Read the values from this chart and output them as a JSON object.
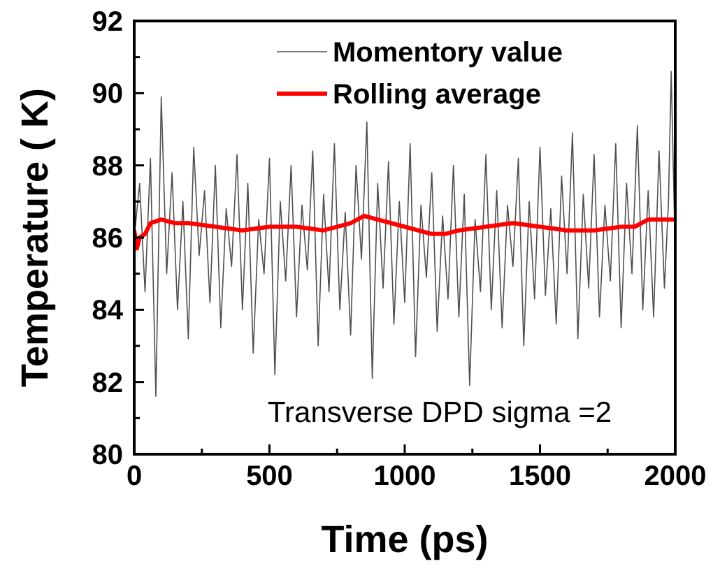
{
  "chart_data": {
    "type": "line",
    "xlabel": "Time (ps)",
    "ylabel": "Temperature ( K)",
    "xlim": [
      0,
      2000
    ],
    "ylim": [
      80,
      92
    ],
    "xticks": [
      0,
      {
        "value": 250,
        "label": null
      },
      500,
      {
        "value": 750,
        "label": null
      },
      1000,
      {
        "value": 1250,
        "label": null
      },
      1500,
      {
        "value": 1750,
        "label": null
      },
      2000
    ],
    "yticks": [
      80,
      {
        "value": 81,
        "label": null
      },
      82,
      {
        "value": 83,
        "label": null
      },
      84,
      {
        "value": 85,
        "label": null
      },
      86,
      {
        "value": 87,
        "label": null
      },
      88,
      {
        "value": 89,
        "label": null
      },
      90,
      {
        "value": 91,
        "label": null
      },
      92
    ],
    "legend": "top right",
    "marker": "none",
    "grid": false,
    "annotations": [
      "Transverse DPD sigma =2"
    ],
    "series": [
      {
        "name": "Momentory value",
        "color": "#505050",
        "x": [
          0,
          20,
          40,
          60,
          80,
          100,
          120,
          140,
          160,
          180,
          200,
          220,
          240,
          260,
          280,
          300,
          320,
          340,
          360,
          380,
          400,
          420,
          440,
          460,
          480,
          500,
          520,
          540,
          560,
          580,
          600,
          620,
          640,
          660,
          680,
          700,
          720,
          740,
          760,
          780,
          800,
          820,
          840,
          860,
          880,
          900,
          920,
          940,
          960,
          980,
          1000,
          1020,
          1040,
          1060,
          1080,
          1100,
          1120,
          1140,
          1160,
          1180,
          1200,
          1220,
          1240,
          1260,
          1280,
          1300,
          1320,
          1340,
          1360,
          1380,
          1400,
          1420,
          1440,
          1460,
          1480,
          1500,
          1520,
          1540,
          1560,
          1580,
          1600,
          1620,
          1640,
          1660,
          1680,
          1700,
          1720,
          1740,
          1760,
          1780,
          1800,
          1820,
          1840,
          1860,
          1880,
          1900,
          1920,
          1940,
          1960,
          1975,
          1985,
          2000
        ],
        "values": [
          86.0,
          87.5,
          84.5,
          88.2,
          81.6,
          89.9,
          85.0,
          87.8,
          84.0,
          87.0,
          83.2,
          88.5,
          85.5,
          87.3,
          84.2,
          88.0,
          83.5,
          86.8,
          85.2,
          88.3,
          84.0,
          87.5,
          82.8,
          86.5,
          85.0,
          88.2,
          82.2,
          87.0,
          84.8,
          88.0,
          83.8,
          86.9,
          85.1,
          88.4,
          83.0,
          87.2,
          84.5,
          88.6,
          84.0,
          86.7,
          83.3,
          88.0,
          85.4,
          89.2,
          82.1,
          87.5,
          84.6,
          88.1,
          83.6,
          87.0,
          84.2,
          88.6,
          82.7,
          86.9,
          84.9,
          87.8,
          83.4,
          86.6,
          84.3,
          88.0,
          83.8,
          87.2,
          81.9,
          86.5,
          84.5,
          88.3,
          84.0,
          87.3,
          83.5,
          86.9,
          85.2,
          88.2,
          83.0,
          87.0,
          84.3,
          88.5,
          84.4,
          86.8,
          83.6,
          87.7,
          85.0,
          88.9,
          83.2,
          87.2,
          84.6,
          88.3,
          83.8,
          86.9,
          84.8,
          88.6,
          83.5,
          87.5,
          85.0,
          89.1,
          84.0,
          87.3,
          83.8,
          88.4,
          84.6,
          87.0,
          90.6,
          85.5
        ]
      },
      {
        "name": "Rolling average",
        "color": "#ff0000",
        "x": [
          0,
          10,
          20,
          40,
          60,
          100,
          150,
          200,
          300,
          400,
          500,
          600,
          700,
          800,
          850,
          900,
          1000,
          1100,
          1150,
          1200,
          1300,
          1400,
          1500,
          1600,
          1700,
          1800,
          1850,
          1900,
          2000
        ],
        "values": [
          86.2,
          85.7,
          86.0,
          86.1,
          86.4,
          86.5,
          86.4,
          86.4,
          86.3,
          86.2,
          86.3,
          86.3,
          86.2,
          86.4,
          86.6,
          86.5,
          86.3,
          86.1,
          86.1,
          86.2,
          86.3,
          86.4,
          86.3,
          86.2,
          86.2,
          86.3,
          86.3,
          86.5,
          86.5
        ]
      }
    ]
  }
}
